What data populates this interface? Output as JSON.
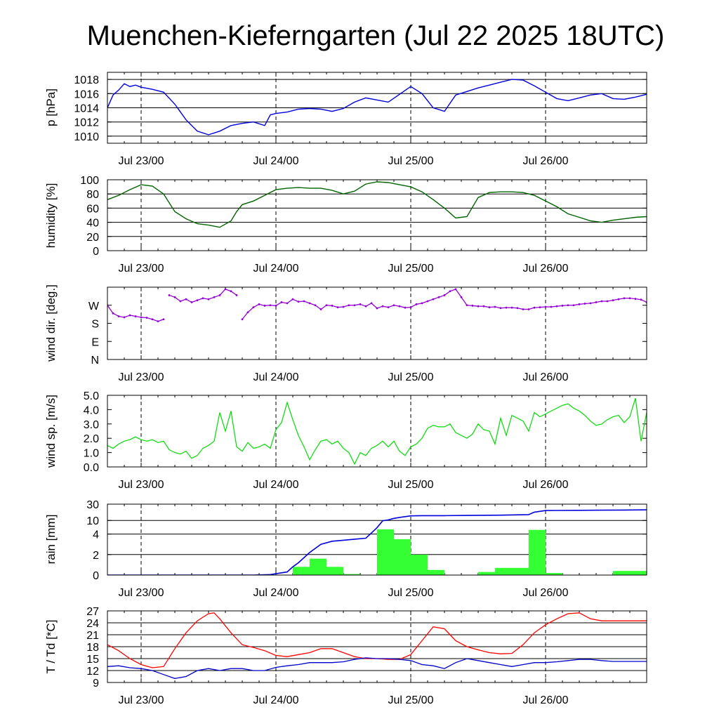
{
  "title": "Muenchen-Kieferngarten (Jul 22 2025 18UTC)",
  "x_tick_labels": [
    "Jul 23/00",
    "Jul 24/00",
    "Jul 25/00",
    "Jul 26/00"
  ],
  "colors": {
    "pressure": "#0000dd",
    "humidity": "#006400",
    "wind_dir": "#9400d3",
    "wind_speed": "#00dd00",
    "rain_total": "#0000dd",
    "rain_bars": "#33ff33",
    "temperature": "#ff0000",
    "dewpoint": "#0000cc"
  },
  "chart_data": [
    {
      "type": "line",
      "name": "pressure",
      "ylabel": "p [hPa]",
      "x_unit": "hours since Jul 22 18UTC",
      "xlim": [
        0,
        96
      ],
      "ylim": [
        1009,
        1019
      ],
      "y_ticks": [
        "1010",
        "1012",
        "1014",
        "1016",
        "1018"
      ],
      "grid": "horizontal",
      "x": [
        0,
        1,
        2,
        3,
        4,
        5,
        6,
        8,
        10,
        12,
        14,
        16,
        18,
        20,
        22,
        24,
        26,
        28,
        29,
        30,
        32,
        34,
        36,
        38,
        40,
        42,
        44,
        46,
        48,
        50,
        52,
        54,
        56,
        58,
        60,
        62,
        64,
        66,
        68,
        70,
        72,
        74,
        76,
        78,
        80,
        82,
        84,
        86,
        88,
        90,
        92,
        94,
        96
      ],
      "y": [
        1014.0,
        1015.8,
        1016.5,
        1017.4,
        1017.0,
        1017.2,
        1016.9,
        1016.6,
        1016.2,
        1014.5,
        1012.3,
        1010.7,
        1010.2,
        1010.7,
        1011.5,
        1011.8,
        1012.0,
        1011.5,
        1013.0,
        1013.2,
        1013.4,
        1013.8,
        1013.9,
        1013.8,
        1013.5,
        1013.9,
        1014.8,
        1015.4,
        1015.1,
        1014.8,
        1015.9,
        1017.0,
        1016.0,
        1014.0,
        1013.5,
        1015.8,
        1016.3,
        1016.8,
        1017.2,
        1017.6,
        1018.0,
        1017.9,
        1017.1,
        1016.2,
        1015.3,
        1015.0,
        1015.4,
        1015.8,
        1016.0,
        1015.3,
        1015.2,
        1015.5,
        1015.9
      ]
    },
    {
      "type": "line",
      "name": "humidity",
      "ylabel": "humidity [%]",
      "xlim": [
        0,
        96
      ],
      "ylim": [
        0,
        100
      ],
      "y_ticks": [
        "0",
        "20",
        "40",
        "60",
        "80",
        "100"
      ],
      "grid": "horizontal",
      "x": [
        0,
        2,
        4,
        6,
        8,
        10,
        12,
        14,
        16,
        18,
        20,
        22,
        23,
        24,
        26,
        28,
        30,
        32,
        34,
        36,
        38,
        40,
        42,
        44,
        46,
        48,
        50,
        52,
        54,
        56,
        58,
        60,
        62,
        64,
        66,
        68,
        70,
        72,
        74,
        76,
        78,
        80,
        82,
        84,
        86,
        88,
        90,
        92,
        94,
        96
      ],
      "y": [
        72,
        78,
        86,
        93,
        91,
        80,
        55,
        45,
        38,
        36,
        33,
        42,
        55,
        65,
        70,
        78,
        86,
        88,
        89,
        88,
        88,
        85,
        80,
        84,
        94,
        97,
        96,
        93,
        90,
        83,
        72,
        60,
        46,
        48,
        75,
        82,
        83,
        83,
        82,
        78,
        70,
        62,
        52,
        47,
        42,
        40,
        43,
        45,
        47,
        48
      ]
    },
    {
      "type": "scatter",
      "name": "wind-direction",
      "ylabel": "wind dir. [deg.]",
      "xlim": [
        0,
        96
      ],
      "ylim": [
        0,
        360
      ],
      "y_ticks": [
        "N",
        "E",
        "S",
        "W"
      ],
      "y_tick_values": [
        0,
        90,
        180,
        270
      ],
      "grid": "none",
      "x": [
        0,
        1,
        2,
        3,
        4,
        5,
        6,
        7,
        8,
        9,
        10,
        11,
        12,
        13,
        14,
        15,
        16,
        17,
        18,
        19,
        20,
        21,
        22,
        23,
        24,
        25,
        26,
        27,
        28,
        29,
        30,
        31,
        32,
        33,
        34,
        35,
        36,
        37,
        38,
        39,
        40,
        41,
        42,
        43,
        44,
        45,
        46,
        47,
        48,
        49,
        50,
        51,
        52,
        53,
        54,
        55,
        56,
        57,
        58,
        59,
        60,
        61,
        62,
        63,
        64,
        65,
        66,
        67,
        68,
        69,
        70,
        71,
        72,
        73,
        74,
        75,
        76,
        77,
        78,
        79,
        80,
        81,
        82,
        83,
        84,
        85,
        86,
        87,
        88,
        89,
        90,
        91,
        92,
        93,
        94,
        95,
        96
      ],
      "y": [
        270,
        230,
        215,
        210,
        220,
        215,
        210,
        208,
        200,
        190,
        200,
        320,
        310,
        290,
        300,
        285,
        295,
        305,
        300,
        310,
        320,
        350,
        340,
        320,
        200,
        235,
        260,
        275,
        268,
        270,
        268,
        285,
        280,
        300,
        288,
        290,
        280,
        270,
        250,
        270,
        268,
        260,
        262,
        270,
        270,
        275,
        265,
        280,
        255,
        265,
        260,
        270,
        265,
        258,
        260,
        275,
        280,
        290,
        300,
        310,
        320,
        340,
        350,
        310,
        270,
        268,
        265,
        265,
        260,
        262,
        256,
        258,
        258,
        256,
        250,
        250,
        258,
        260,
        262,
        262,
        265,
        268,
        270,
        270,
        275,
        278,
        280,
        285,
        290,
        290,
        295,
        300,
        305,
        305,
        302,
        298,
        285
      ]
    },
    {
      "type": "line",
      "name": "wind-speed",
      "ylabel": "wind sp. [m/s]",
      "xlim": [
        0,
        96
      ],
      "ylim": [
        0,
        5
      ],
      "y_ticks": [
        "0.0",
        "1.0",
        "2.0",
        "3.0",
        "4.0",
        "5.0"
      ],
      "grid": "none",
      "x": [
        0,
        1,
        2,
        3,
        4,
        5,
        6,
        7,
        8,
        9,
        10,
        11,
        12,
        13,
        14,
        15,
        16,
        17,
        18,
        19,
        20,
        21,
        22,
        23,
        24,
        25,
        26,
        27,
        28,
        29,
        30,
        31,
        32,
        33,
        34,
        35,
        36,
        37,
        38,
        39,
        40,
        41,
        42,
        43,
        44,
        45,
        46,
        47,
        48,
        49,
        50,
        51,
        52,
        53,
        54,
        55,
        56,
        57,
        58,
        59,
        60,
        61,
        62,
        63,
        64,
        65,
        66,
        67,
        68,
        69,
        70,
        71,
        72,
        73,
        74,
        75,
        76,
        77,
        78,
        79,
        80,
        81,
        82,
        83,
        84,
        85,
        86,
        87,
        88,
        89,
        90,
        91,
        92,
        93,
        94,
        95,
        96
      ],
      "y": [
        1.5,
        1.3,
        1.6,
        1.8,
        1.9,
        2.1,
        1.9,
        1.8,
        1.9,
        1.7,
        1.8,
        1.2,
        1.0,
        0.9,
        1.1,
        0.6,
        0.8,
        1.3,
        1.5,
        1.8,
        3.8,
        2.5,
        3.9,
        1.4,
        1.1,
        1.7,
        1.3,
        1.4,
        1.6,
        1.3,
        2.6,
        3.1,
        4.5,
        3.3,
        2.2,
        1.4,
        0.5,
        1.2,
        1.8,
        1.9,
        1.6,
        1.8,
        1.3,
        1.0,
        0.2,
        1.0,
        0.8,
        1.3,
        1.5,
        1.8,
        1.4,
        1.8,
        1.1,
        0.8,
        1.4,
        1.6,
        2.0,
        2.7,
        2.9,
        2.8,
        2.8,
        3.0,
        2.4,
        2.2,
        2.0,
        2.3,
        3.0,
        2.6,
        2.5,
        1.6,
        3.4,
        2.2,
        3.6,
        3.4,
        3.2,
        2.5,
        3.8,
        3.5,
        3.7,
        3.9,
        4.1,
        4.3,
        4.4,
        4.1,
        3.9,
        3.6,
        3.2,
        2.9,
        3.0,
        3.3,
        3.5,
        3.6,
        3.1,
        3.5,
        4.8,
        1.8,
        3.8
      ]
    },
    {
      "type": "bar",
      "name": "rain",
      "ylabel": "rain [mm]",
      "xlim": [
        0,
        96
      ],
      "y_scale": "mixed: linear 0-4, logarithmic 4-30",
      "y_ticks": [
        "0",
        "2",
        "4",
        "10",
        "30"
      ],
      "y_tick_values": [
        0,
        2,
        4,
        10,
        30
      ],
      "grid": "horizontal",
      "bars": {
        "start": [
          33,
          36,
          39,
          42,
          48,
          51,
          54,
          57,
          66,
          69,
          72,
          75,
          78,
          81,
          90
        ],
        "end": [
          36,
          39,
          42,
          45,
          51,
          54,
          57,
          60,
          69,
          72,
          75,
          78,
          81,
          84,
          96
        ],
        "values": [
          0.8,
          1.6,
          0.8,
          0.1,
          5.5,
          3.5,
          2.0,
          0.5,
          0.3,
          0.7,
          0.7,
          5.3,
          0.2,
          0.0,
          0.4
        ]
      },
      "cumulative": {
        "x": [
          0,
          26,
          29,
          32,
          33,
          34,
          36,
          38,
          40,
          42,
          44,
          46,
          47,
          48,
          49,
          50,
          51,
          52,
          54,
          56,
          58,
          60,
          64,
          68,
          70,
          75,
          76,
          78,
          80,
          84,
          88,
          92,
          96
        ],
        "y": [
          0,
          0,
          0.05,
          0.3,
          0.8,
          1.2,
          2.2,
          3.0,
          3.3,
          3.4,
          3.5,
          3.6,
          4.3,
          6.2,
          9.8,
          10.4,
          11.5,
          12.3,
          13.6,
          13.8,
          13.8,
          13.8,
          14.0,
          14.2,
          14.3,
          14.8,
          17.5,
          19.5,
          19.6,
          19.8,
          20.0,
          20.2,
          20.5
        ]
      }
    },
    {
      "type": "line",
      "name": "temperature-dewpoint",
      "ylabel": "T / Td [*C]",
      "xlim": [
        0,
        96
      ],
      "ylim": [
        9,
        27
      ],
      "y_ticks": [
        "9",
        "12",
        "15",
        "18",
        "21",
        "24",
        "27"
      ],
      "grid": "horizontal",
      "series": [
        {
          "name": "T",
          "x": [
            0,
            2,
            4,
            6,
            8,
            10,
            12,
            14,
            16,
            18,
            19,
            20,
            22,
            24,
            26,
            28,
            30,
            32,
            34,
            36,
            38,
            40,
            42,
            44,
            46,
            48,
            50,
            52,
            54,
            56,
            58,
            60,
            62,
            64,
            66,
            68,
            70,
            72,
            74,
            76,
            78,
            80,
            82,
            84,
            86,
            88,
            90,
            92,
            94,
            96
          ],
          "y": [
            18.5,
            17.0,
            15.0,
            13.5,
            12.7,
            13.0,
            17.5,
            21.5,
            24.5,
            26.3,
            26.5,
            25.0,
            21.5,
            18.5,
            17.8,
            17.0,
            15.8,
            15.5,
            16.0,
            16.5,
            17.5,
            17.5,
            16.5,
            15.5,
            15.0,
            15.0,
            14.8,
            14.8,
            16.0,
            19.5,
            23.0,
            22.5,
            19.5,
            18.0,
            17.2,
            16.5,
            16.2,
            16.3,
            18.5,
            21.5,
            23.5,
            25.0,
            26.3,
            26.5,
            25.0,
            24.5,
            24.5,
            24.5,
            24.5,
            24.5
          ]
        },
        {
          "name": "Td",
          "x": [
            0,
            2,
            4,
            6,
            8,
            10,
            12,
            14,
            16,
            18,
            20,
            22,
            24,
            26,
            28,
            30,
            32,
            34,
            36,
            38,
            40,
            42,
            44,
            46,
            48,
            50,
            52,
            54,
            56,
            58,
            60,
            62,
            64,
            66,
            68,
            70,
            72,
            74,
            76,
            78,
            80,
            82,
            84,
            86,
            88,
            90,
            92,
            94,
            96
          ],
          "y": [
            13.0,
            13.2,
            12.7,
            12.5,
            12.0,
            11.0,
            10.0,
            10.5,
            12.0,
            12.5,
            12.0,
            12.5,
            12.5,
            12.0,
            12.0,
            12.8,
            13.2,
            13.5,
            14.0,
            14.0,
            14.0,
            14.2,
            14.8,
            15.2,
            15.0,
            15.0,
            14.8,
            14.5,
            13.5,
            13.2,
            12.5,
            14.0,
            15.0,
            14.5,
            14.0,
            13.5,
            13.0,
            13.5,
            14.0,
            14.0,
            14.2,
            14.5,
            14.8,
            14.8,
            14.5,
            14.3,
            14.3,
            14.3,
            14.3
          ]
        }
      ]
    }
  ]
}
